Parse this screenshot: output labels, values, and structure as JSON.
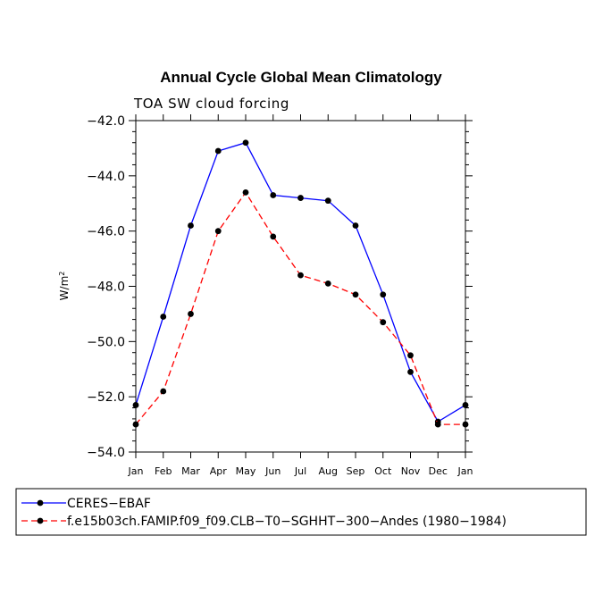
{
  "chart_data": {
    "type": "line",
    "title": "Annual Cycle Global Mean Climatology",
    "subtitle": "TOA SW cloud forcing",
    "xlabel": "",
    "ylabel": "W/m",
    "ylabel_superscript": "2",
    "categories": [
      "Jan",
      "Feb",
      "Mar",
      "Apr",
      "May",
      "Jun",
      "Jul",
      "Aug",
      "Sep",
      "Oct",
      "Nov",
      "Dec",
      "Jan"
    ],
    "ylim": [
      -54.0,
      -42.0
    ],
    "yticks": [
      -42.0,
      -44.0,
      -46.0,
      -48.0,
      -50.0,
      -52.0,
      -54.0
    ],
    "ytick_labels": [
      "−42.0",
      "−44.0",
      "−46.0",
      "−48.0",
      "−50.0",
      "−52.0",
      "−54.0"
    ],
    "series": [
      {
        "name": "CERES−EBAF",
        "color": "#0000ff",
        "dash": "solid",
        "values": [
          -52.3,
          -49.1,
          -45.8,
          -43.1,
          -42.8,
          -44.7,
          -44.8,
          -44.9,
          -45.8,
          -48.3,
          -51.1,
          -52.9,
          -52.3
        ]
      },
      {
        "name": "f.e15b03ch.FAMIP.f09_f09.CLB−T0−SGHHT−300−Andes (1980−1984)",
        "color": "#ff0000",
        "dash": "dashed",
        "values": [
          -53.0,
          -51.8,
          -49.0,
          -46.0,
          -44.6,
          -46.2,
          -47.6,
          -47.9,
          -48.3,
          -49.3,
          -50.5,
          -53.0,
          -53.0
        ]
      }
    ]
  }
}
